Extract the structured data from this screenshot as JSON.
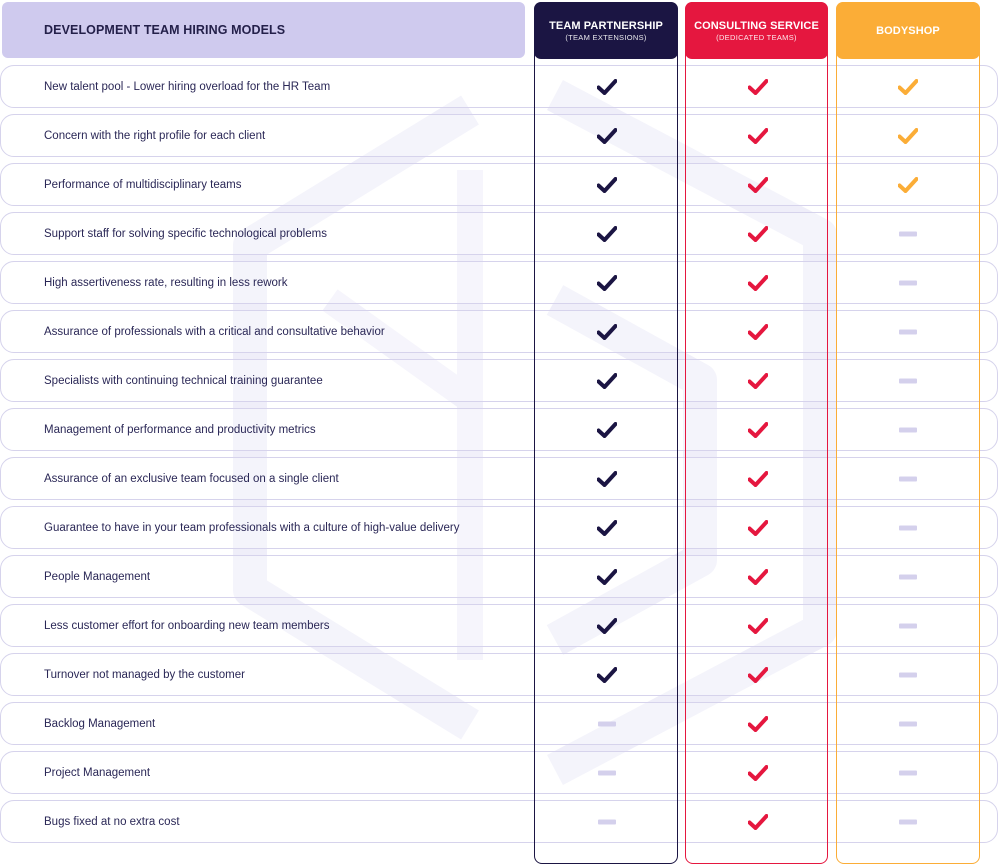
{
  "header": {
    "title": "DEVELOPMENT TEAM HIRING MODELS"
  },
  "columns": [
    {
      "key": "team",
      "title": "TEAM PARTNERSHIP",
      "subtitle": "(TEAM EXTENSIONS)",
      "color": "#1b1543"
    },
    {
      "key": "consult",
      "title": "CONSULTING SERVICE",
      "subtitle": "(DEDICATED TEAMS)",
      "color": "#e5173f"
    },
    {
      "key": "body",
      "title": "BODYSHOP",
      "subtitle": "",
      "color": "#fbad37"
    }
  ],
  "rows": [
    {
      "label": "New talent pool - Lower hiring overload for the HR Team",
      "team": "check",
      "consult": "check",
      "body": "check"
    },
    {
      "label": "Concern with the right profile for each client",
      "team": "check",
      "consult": "check",
      "body": "check"
    },
    {
      "label": "Performance of multidisciplinary teams",
      "team": "check",
      "consult": "check",
      "body": "check"
    },
    {
      "label": "Support staff for solving specific technological problems",
      "team": "check",
      "consult": "check",
      "body": "dash"
    },
    {
      "label": "High assertiveness rate, resulting in less rework",
      "team": "check",
      "consult": "check",
      "body": "dash"
    },
    {
      "label": "Assurance of professionals with a critical and consultative behavior",
      "team": "check",
      "consult": "check",
      "body": "dash"
    },
    {
      "label": "Specialists with continuing technical training guarantee",
      "team": "check",
      "consult": "check",
      "body": "dash"
    },
    {
      "label": "Management of performance and productivity metrics",
      "team": "check",
      "consult": "check",
      "body": "dash"
    },
    {
      "label": "Assurance of an exclusive team focused on a single client",
      "team": "check",
      "consult": "check",
      "body": "dash"
    },
    {
      "label": "Guarantee to have in your team professionals with a culture of high-value delivery",
      "team": "check",
      "consult": "check",
      "body": "dash"
    },
    {
      "label": "People Management",
      "team": "check",
      "consult": "check",
      "body": "dash"
    },
    {
      "label": "Less customer effort for onboarding new team members",
      "team": "check",
      "consult": "check",
      "body": "dash"
    },
    {
      "label": "Turnover not managed by the customer",
      "team": "check",
      "consult": "check",
      "body": "dash"
    },
    {
      "label": "Backlog Management",
      "team": "dash",
      "consult": "check",
      "body": "dash"
    },
    {
      "label": "Project Management",
      "team": "dash",
      "consult": "check",
      "body": "dash"
    },
    {
      "label": "Bugs fixed at no extra cost",
      "team": "dash",
      "consult": "check",
      "body": "dash"
    }
  ],
  "icons": {
    "check": "check-icon",
    "dash": "dash-icon",
    "dash_color": "#d4d0ec"
  }
}
